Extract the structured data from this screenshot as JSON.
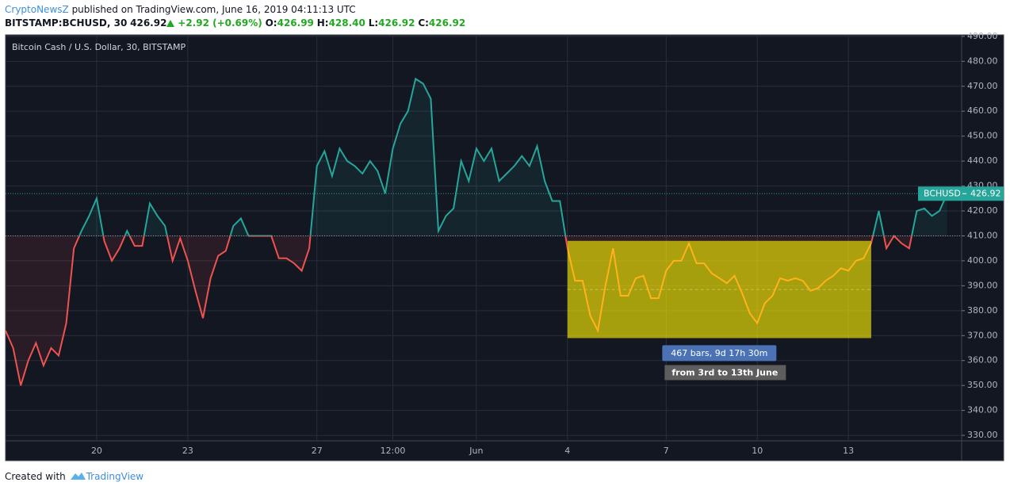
{
  "header": {
    "author": "CryptoNewsZ",
    "published": "published on TradingView.com, June 16, 2019 04:11:13 UTC",
    "symbol": "BITSTAMP:BCHUSD, 30",
    "price": "426.92",
    "change": "+2.92 (+0.69%)",
    "ohlc": [
      {
        "label": "O:",
        "value": "426.99"
      },
      {
        "label": "H:",
        "value": "428.40"
      },
      {
        "label": "L:",
        "value": "426.92"
      },
      {
        "label": "C:",
        "value": "426.92"
      }
    ]
  },
  "chart_data": {
    "type": "line",
    "title": "Bitcoin Cash / U.S. Dollar, 30, BITSTAMP",
    "categories": [
      null,
      null,
      null,
      null,
      null,
      null,
      null,
      null,
      null,
      null,
      null,
      null,
      "20",
      null,
      null,
      null,
      null,
      null,
      null,
      null,
      null,
      null,
      null,
      null,
      "23",
      null,
      null,
      null,
      null,
      null,
      null,
      null,
      null,
      null,
      null,
      null,
      null,
      null,
      null,
      null,
      null,
      "27",
      null,
      null,
      null,
      null,
      null,
      null,
      null,
      null,
      null,
      "12:00",
      null,
      null,
      null,
      null,
      null,
      null,
      null,
      null,
      null,
      null,
      "Jun",
      null,
      null,
      null,
      null,
      null,
      null,
      null,
      null,
      null,
      null,
      null,
      "4",
      null,
      null,
      null,
      null,
      null,
      null,
      null,
      null,
      null,
      null,
      null,
      null,
      "7",
      null,
      null,
      null,
      null,
      null,
      null,
      null,
      null,
      null,
      null,
      null,
      "10",
      null,
      null,
      null,
      null,
      null,
      null,
      null,
      null,
      null,
      null,
      null,
      "13",
      null,
      null,
      null,
      null,
      null,
      null,
      null,
      null,
      null,
      null,
      null,
      null,
      null
    ],
    "series": [
      {
        "name": "BCHUSD",
        "color": "#26a69a",
        "values": [
          372,
          365,
          350,
          360,
          367,
          358,
          365,
          362,
          375,
          405,
          412,
          418,
          425,
          408,
          400,
          405,
          412,
          406,
          406,
          423,
          418,
          414,
          400,
          409,
          400,
          388,
          377,
          393,
          402,
          404,
          414,
          417,
          410,
          410,
          410,
          410,
          401,
          401,
          399,
          396,
          405,
          438,
          444,
          434,
          445,
          440,
          438,
          435,
          440,
          436,
          427,
          445,
          455,
          460,
          473,
          471,
          465,
          412,
          418,
          421,
          440,
          432,
          445,
          440,
          445,
          432,
          435,
          438,
          442,
          438,
          446,
          432,
          424,
          424,
          405,
          392,
          392,
          378,
          372,
          390,
          405,
          386,
          386,
          393,
          394,
          385,
          385,
          396,
          400,
          400,
          407,
          399,
          399,
          395,
          393,
          391,
          394,
          387,
          379,
          375,
          383,
          386,
          393,
          392,
          393,
          392,
          388,
          389,
          392,
          394,
          397,
          396,
          400,
          401,
          407,
          420,
          405,
          410,
          407,
          405,
          420,
          421,
          418,
          420,
          426.92
        ]
      }
    ],
    "below_color": "#ef5350",
    "baseline": 410,
    "ylim": [
      327.8,
      490.6
    ],
    "yticks": [
      {
        "value": 330,
        "label": "330.00"
      },
      {
        "value": 340,
        "label": "340.00"
      },
      {
        "value": 350,
        "label": "350.00"
      },
      {
        "value": 360,
        "label": "360.00"
      },
      {
        "value": 370,
        "label": "370.00"
      },
      {
        "value": 380,
        "label": "380.00"
      },
      {
        "value": 390,
        "label": "390.00"
      },
      {
        "value": 400,
        "label": "400.00"
      },
      {
        "value": 410,
        "label": "410.00"
      },
      {
        "value": 420,
        "label": "420.00"
      },
      {
        "value": 430,
        "label": "430.00"
      },
      {
        "value": 440,
        "label": "440.00"
      },
      {
        "value": 450,
        "label": "450.00"
      },
      {
        "value": 460,
        "label": "460.00"
      },
      {
        "value": 470,
        "label": "470.00"
      },
      {
        "value": 480,
        "label": "480.00"
      },
      {
        "value": 490,
        "label": "490.00"
      }
    ],
    "grid": true,
    "highlight": {
      "xlim": [
        74,
        114
      ],
      "ylim": [
        369,
        408
      ],
      "color": "#ffb21c",
      "fill": "#fff200"
    },
    "annotations": [
      "467 bars, 9d 17h 30m",
      "from 3rd to 13th June"
    ]
  },
  "footer": {
    "created": "Created with",
    "brand": "TradingView"
  }
}
